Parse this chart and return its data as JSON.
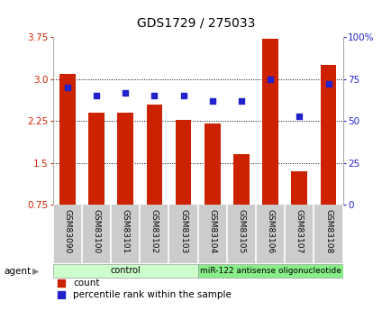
{
  "title": "GDS1729 / 275033",
  "samples": [
    "GSM83090",
    "GSM83100",
    "GSM83101",
    "GSM83102",
    "GSM83103",
    "GSM83104",
    "GSM83105",
    "GSM83106",
    "GSM83107",
    "GSM83108"
  ],
  "bar_values": [
    3.1,
    2.4,
    2.4,
    2.55,
    2.27,
    2.2,
    1.65,
    3.72,
    1.35,
    3.25
  ],
  "dot_values": [
    70,
    65,
    67,
    65,
    65,
    62,
    62,
    75,
    53,
    72
  ],
  "ylim_left": [
    0.75,
    3.75
  ],
  "ylim_right": [
    0,
    100
  ],
  "yticks_left": [
    0.75,
    1.5,
    2.25,
    3.0,
    3.75
  ],
  "yticks_right": [
    0,
    25,
    50,
    75,
    100
  ],
  "bar_color": "#CC2200",
  "dot_color": "#2222CC",
  "bg_color": "#FFFFFF",
  "control_samples": 5,
  "control_label": "control",
  "treatment_label": "miR-122 antisense oligonucleotide",
  "control_bg": "#CCFFCC",
  "treatment_bg": "#88EE88",
  "tick_label_bg": "#CCCCCC",
  "agent_label": "agent",
  "legend_count": "count",
  "legend_pct": "percentile rank within the sample",
  "bar_width": 0.55,
  "grid_yticks": [
    1.5,
    2.25,
    3.0
  ]
}
